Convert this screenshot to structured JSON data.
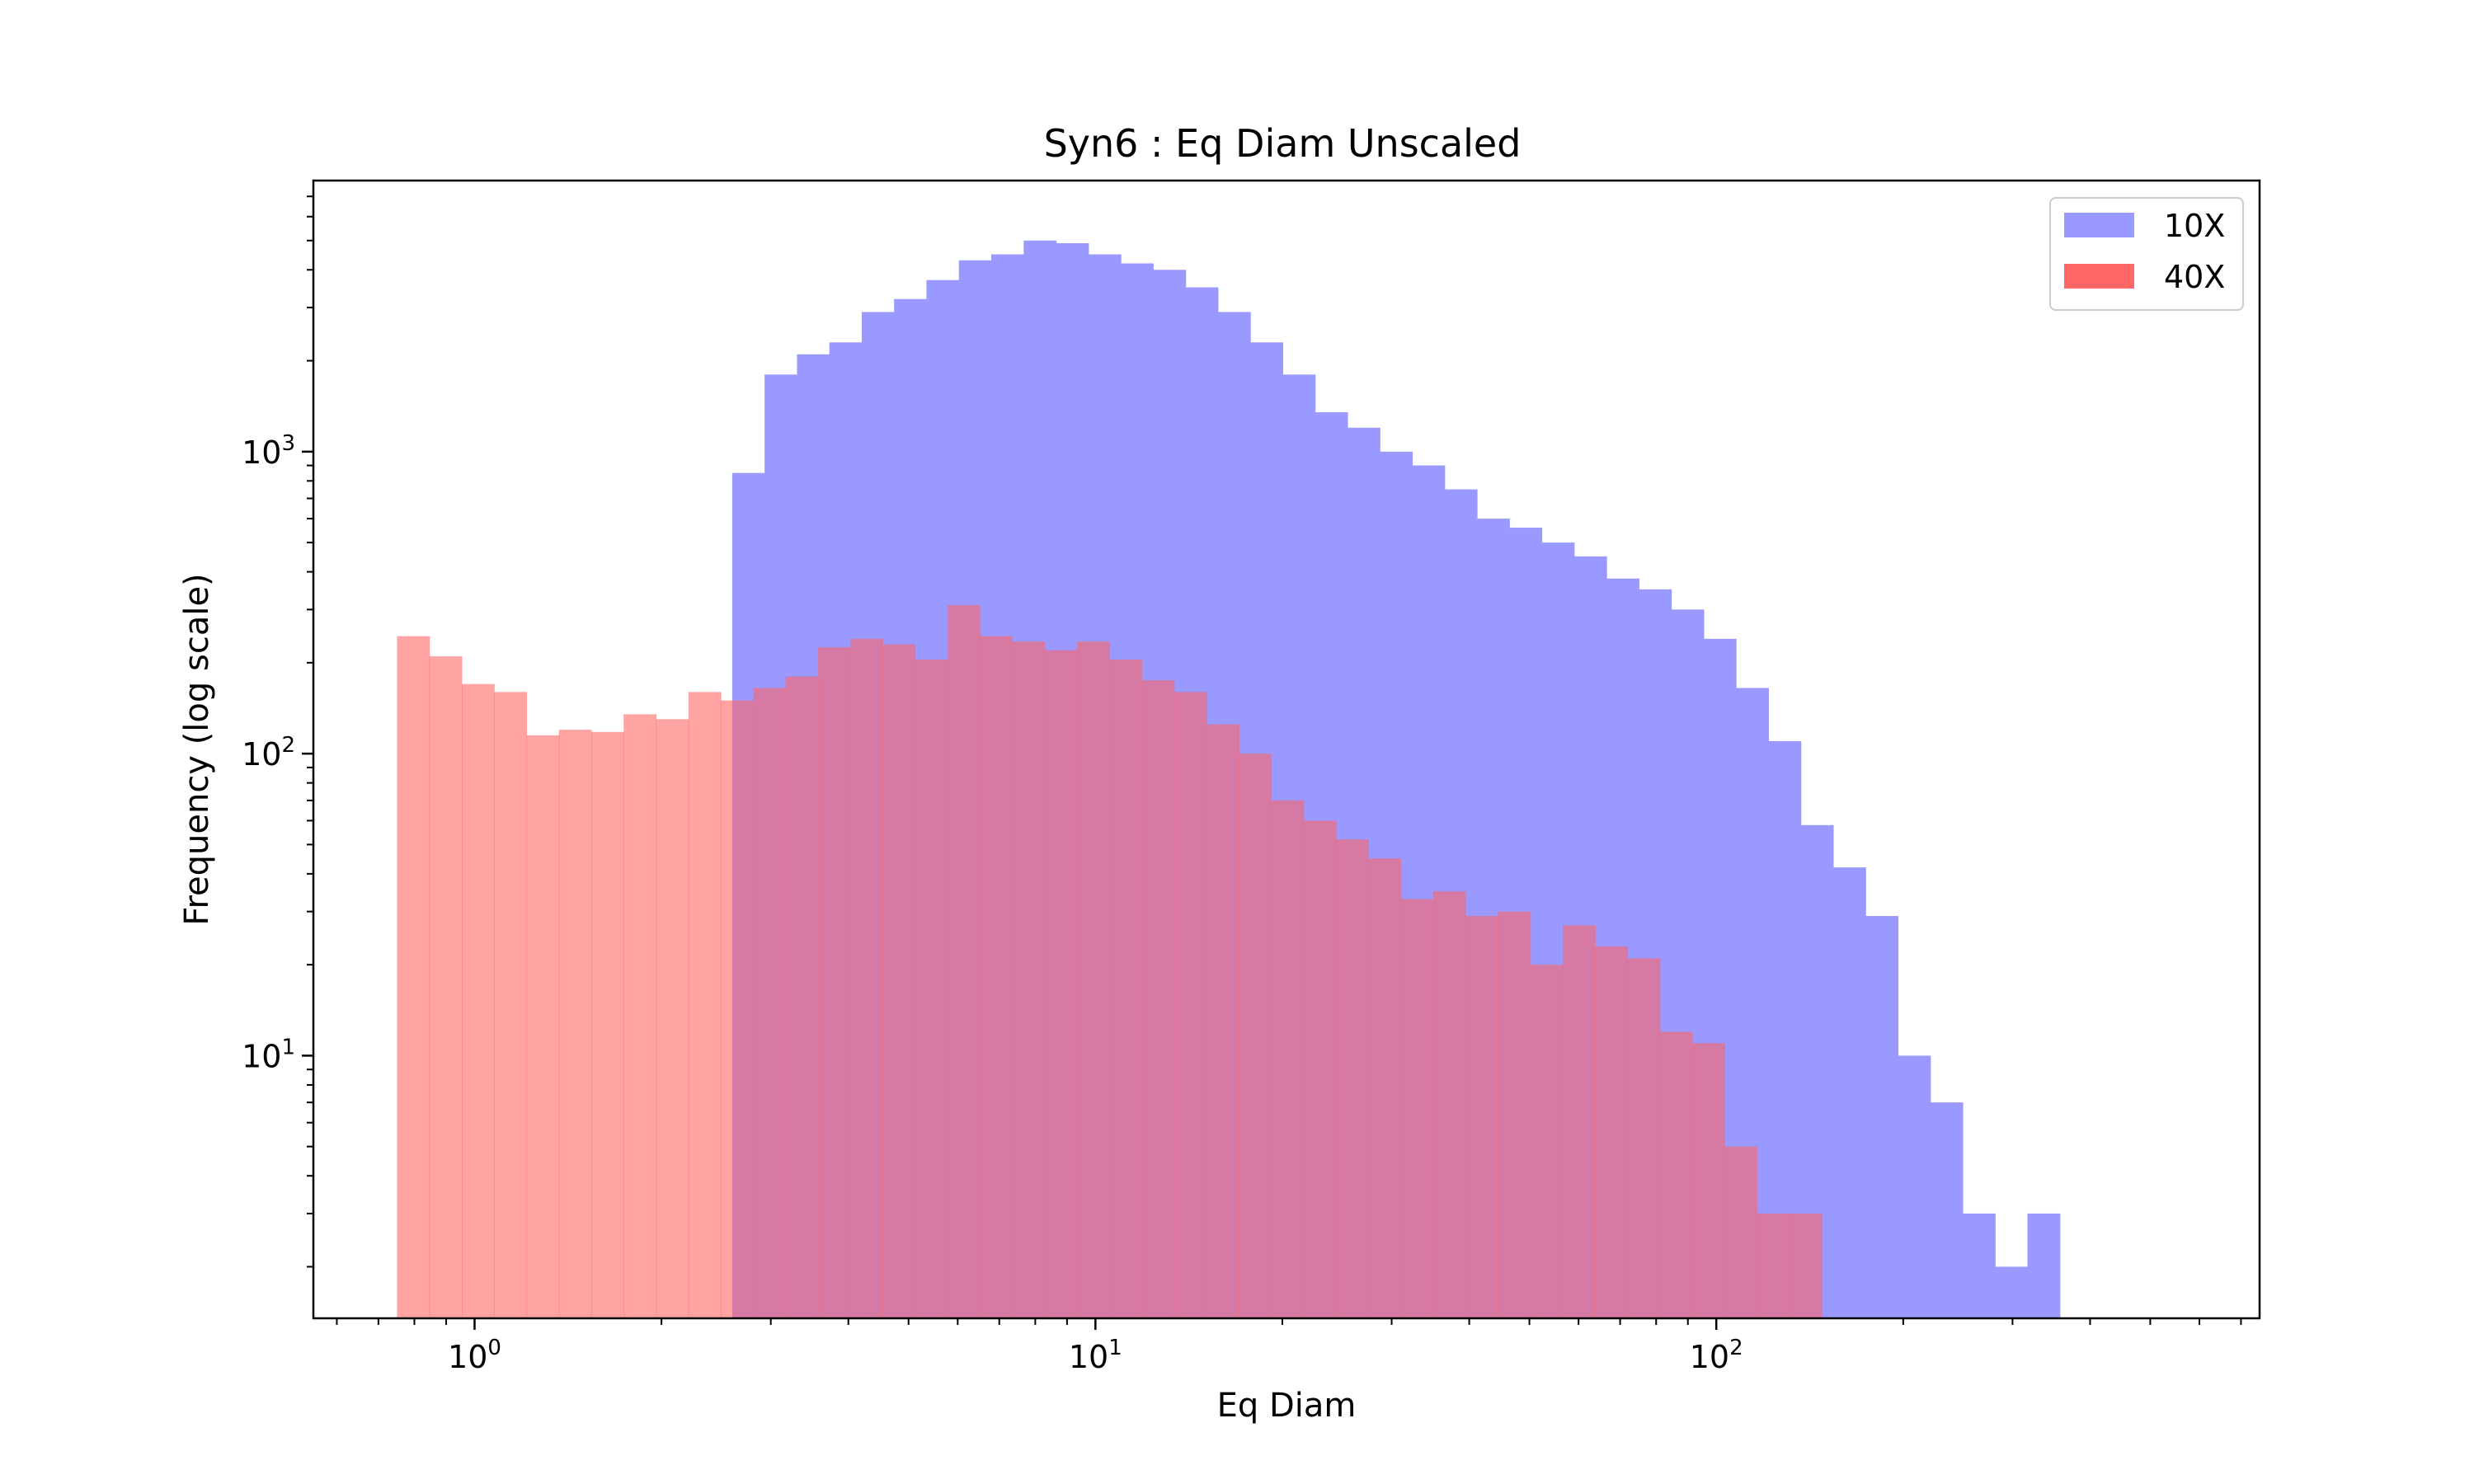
{
  "chart_data": {
    "type": "histogram",
    "title": "Syn6 : Eq Diam Unscaled",
    "xlabel": "Eq Diam",
    "ylabel": "Frequency (log scale)",
    "xscale": "log",
    "yscale": "log",
    "xlim": [
      0.55,
      750
    ],
    "ylim": [
      1.35,
      7900
    ],
    "x_ticks": [
      {
        "value": 1,
        "base": "10",
        "exp": "0"
      },
      {
        "value": 10,
        "base": "10",
        "exp": "1"
      },
      {
        "value": 100,
        "base": "10",
        "exp": "2"
      }
    ],
    "y_ticks": [
      {
        "value": 10,
        "base": "10",
        "exp": "1"
      },
      {
        "value": 100,
        "base": "10",
        "exp": "2"
      },
      {
        "value": 1000,
        "base": "10",
        "exp": "3"
      }
    ],
    "legend_position": "top-right",
    "series": [
      {
        "name": "10X",
        "color": "#9999ff",
        "bin_start": 2.6,
        "bin_ratio": 1.1276,
        "values": [
          850,
          1800,
          2100,
          2300,
          2900,
          3200,
          3700,
          4300,
          4500,
          5000,
          4900,
          4500,
          4200,
          4000,
          3500,
          2900,
          2300,
          1800,
          1350,
          1200,
          1000,
          900,
          750,
          600,
          560,
          500,
          450,
          380,
          350,
          300,
          240,
          165,
          110,
          58,
          42,
          29,
          10,
          7,
          3,
          2,
          3
        ]
      },
      {
        "name": "40X",
        "color": "#ff6666",
        "bin_start": 0.75,
        "bin_ratio": 1.1276,
        "values": [
          245,
          210,
          170,
          160,
          115,
          120,
          118,
          135,
          130,
          160,
          150,
          165,
          180,
          225,
          240,
          230,
          205,
          310,
          245,
          235,
          220,
          235,
          205,
          175,
          160,
          125,
          100,
          70,
          60,
          52,
          45,
          33,
          35,
          29,
          30,
          20,
          27,
          23,
          21,
          12,
          11,
          5,
          3,
          3
        ]
      }
    ]
  }
}
